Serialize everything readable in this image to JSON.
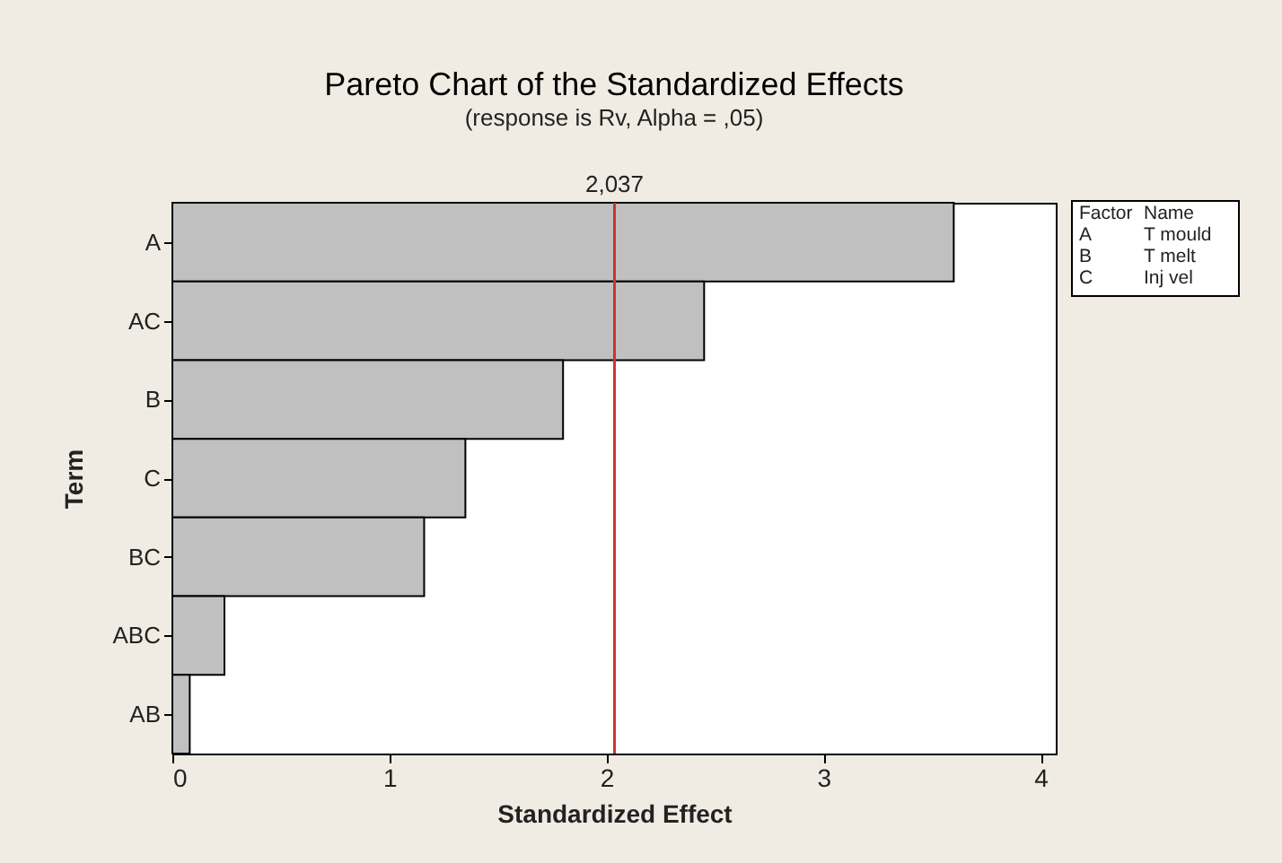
{
  "chart_data": {
    "type": "bar",
    "orientation": "horizontal",
    "title": "Pareto Chart of the Standardized Effects",
    "subtitle": "(response is Rv, Alpha = ,05)",
    "xlabel": "Standardized Effect",
    "ylabel": "Term",
    "categories": [
      "A",
      "AC",
      "B",
      "C",
      "BC",
      "ABC",
      "AB"
    ],
    "values": [
      3.6,
      2.45,
      1.8,
      1.35,
      1.16,
      0.24,
      0.08
    ],
    "color": "#c0c0c0",
    "xlim": [
      0,
      4.07
    ],
    "xticks": [
      0,
      1,
      2,
      3,
      4
    ],
    "grid": false,
    "ref_lines": [
      {
        "axis": "x",
        "value": 2.037,
        "label": "2,037",
        "color": "#cc3333"
      }
    ],
    "annotations": [
      "Factor",
      "Name",
      "A",
      "T mould",
      "B",
      "T melt",
      "C",
      "Inj vel"
    ]
  }
}
